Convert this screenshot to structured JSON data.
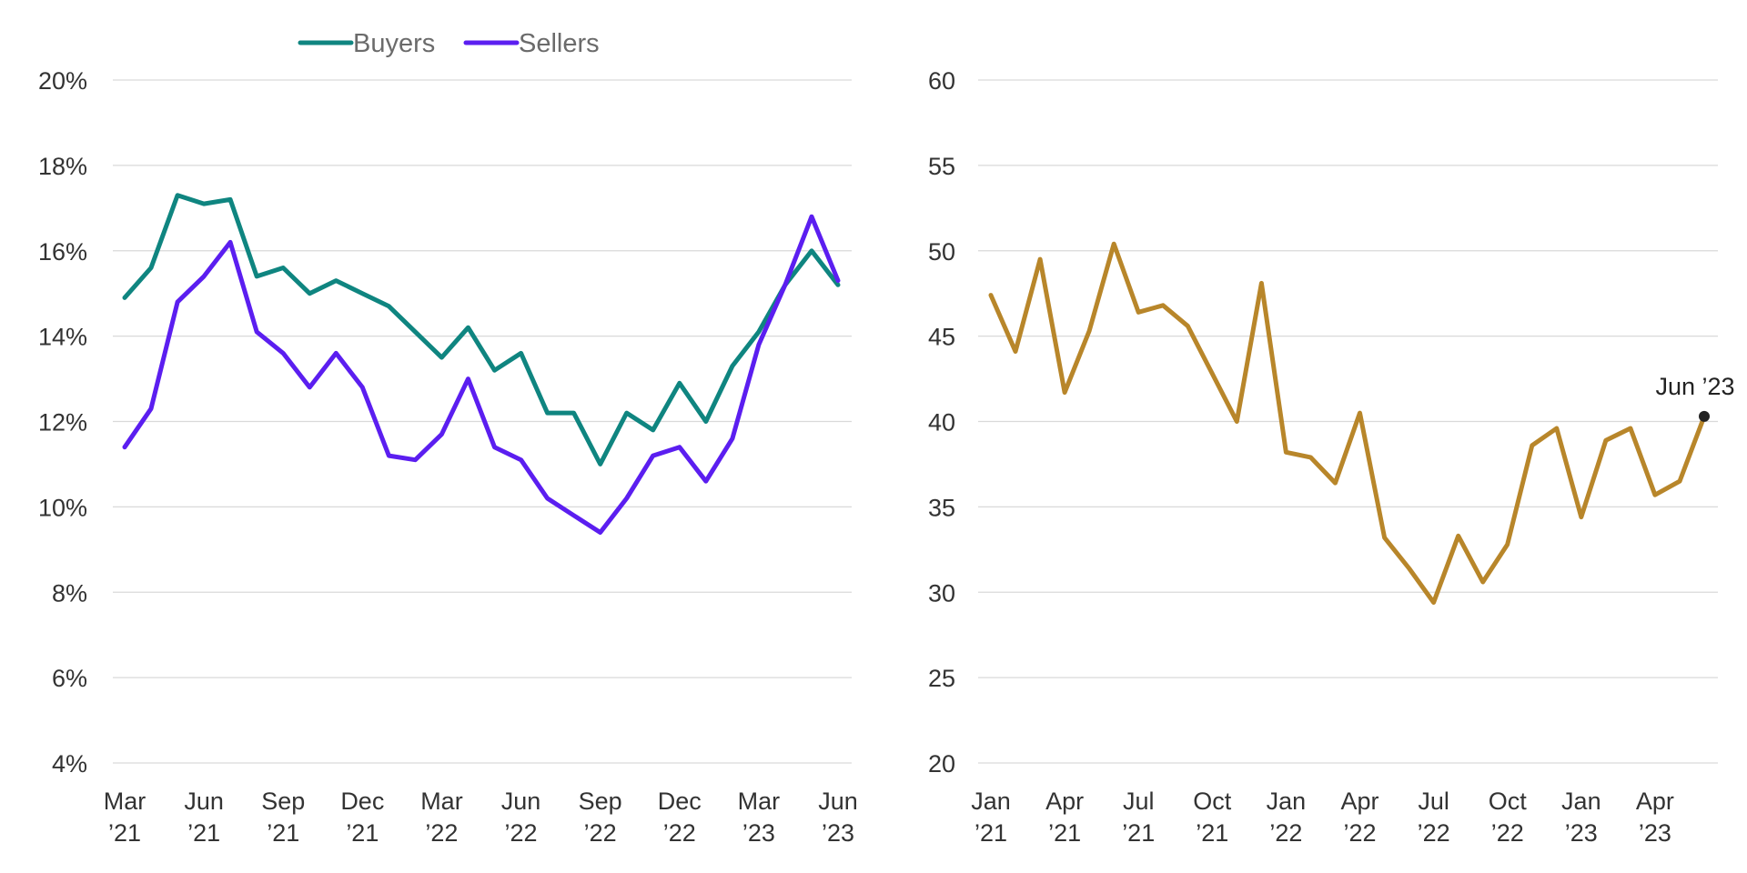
{
  "chart_data": [
    {
      "type": "line",
      "title": "",
      "xlabel": "",
      "ylabel": "",
      "ylim": [
        4,
        20
      ],
      "yticks": [
        "4%",
        "6%",
        "8%",
        "10%",
        "12%",
        "14%",
        "16%",
        "18%",
        "20%"
      ],
      "ytick_values": [
        4,
        6,
        8,
        10,
        12,
        14,
        16,
        18,
        20
      ],
      "x": [
        "Mar 2021",
        "Apr 2021",
        "May 2021",
        "Jun 2021",
        "Jul 2021",
        "Aug 2021",
        "Sep 2021",
        "Oct 2021",
        "Nov 2021",
        "Dec 2021",
        "Jan 2022",
        "Feb 2022",
        "Mar 2022",
        "Apr 2022",
        "May 2022",
        "Jun 2022",
        "Jul 2022",
        "Aug 2022",
        "Sep 2022",
        "Oct 2022",
        "Nov 2022",
        "Dec 2022",
        "Jan 2023",
        "Feb 2023",
        "Mar 2023",
        "Apr 2023",
        "May 2023",
        "Jun 2023"
      ],
      "xtick_labels": [
        {
          "line1": "Mar",
          "line2": "’21"
        },
        {
          "line1": "Jun",
          "line2": "’21"
        },
        {
          "line1": "Sep",
          "line2": "’21"
        },
        {
          "line1": "Dec",
          "line2": "’21"
        },
        {
          "line1": "Mar",
          "line2": "’22"
        },
        {
          "line1": "Jun",
          "line2": "’22"
        },
        {
          "line1": "Sep",
          "line2": "’22"
        },
        {
          "line1": "Dec",
          "line2": "’22"
        },
        {
          "line1": "Mar",
          "line2": "’23"
        },
        {
          "line1": "Jun",
          "line2": "’23"
        }
      ],
      "legend": {
        "placement": "top-center"
      },
      "grid": true,
      "series": [
        {
          "name": "Buyers",
          "color": "#0f8580",
          "values": [
            14.9,
            15.6,
            17.3,
            17.1,
            17.2,
            15.4,
            15.6,
            15.0,
            15.3,
            15.0,
            14.7,
            14.1,
            13.5,
            14.2,
            13.2,
            13.6,
            12.2,
            12.2,
            11.0,
            12.2,
            11.8,
            12.9,
            12.0,
            13.3,
            14.1,
            15.2,
            16.0,
            15.2
          ]
        },
        {
          "name": "Sellers",
          "color": "#5b1ef0",
          "values": [
            11.4,
            12.3,
            14.8,
            15.4,
            16.2,
            14.1,
            13.6,
            12.8,
            13.6,
            12.8,
            11.2,
            11.1,
            11.7,
            13.0,
            11.4,
            11.1,
            10.2,
            9.8,
            9.4,
            10.2,
            11.2,
            11.4,
            10.6,
            11.6,
            13.8,
            15.2,
            16.8,
            15.3
          ]
        }
      ]
    },
    {
      "type": "line",
      "title": "",
      "xlabel": "",
      "ylabel": "",
      "ylim": [
        20,
        60
      ],
      "yticks": [
        "20",
        "25",
        "30",
        "35",
        "40",
        "45",
        "50",
        "55",
        "60"
      ],
      "ytick_values": [
        20,
        25,
        30,
        35,
        40,
        45,
        50,
        55,
        60
      ],
      "x": [
        "Jan 2021",
        "Feb 2021",
        "Mar 2021",
        "Apr 2021",
        "May 2021",
        "Jun 2021",
        "Jul 2021",
        "Aug 2021",
        "Sep 2021",
        "Oct 2021",
        "Nov 2021",
        "Dec 2021",
        "Jan 2022",
        "Feb 2022",
        "Mar 2022",
        "Apr 2022",
        "May 2022",
        "Jun 2022",
        "Jul 2022",
        "Aug 2022",
        "Sep 2022",
        "Oct 2022",
        "Nov 2022",
        "Dec 2022",
        "Jan 2023",
        "Feb 2023",
        "Mar 2023",
        "Apr 2023",
        "May 2023",
        "Jun 2023"
      ],
      "xtick_labels": [
        {
          "line1": "Jan",
          "line2": "’21"
        },
        {
          "line1": "Apr",
          "line2": "’21"
        },
        {
          "line1": "Jul",
          "line2": "’21"
        },
        {
          "line1": "Oct",
          "line2": "’21"
        },
        {
          "line1": "Jan",
          "line2": "’22"
        },
        {
          "line1": "Apr",
          "line2": "’22"
        },
        {
          "line1": "Jul",
          "line2": "’22"
        },
        {
          "line1": "Oct",
          "line2": "’22"
        },
        {
          "line1": "Jan",
          "line2": "’23"
        },
        {
          "line1": "Apr",
          "line2": "’23"
        }
      ],
      "grid": true,
      "series": [
        {
          "color": "#b8862a",
          "values": [
            47.4,
            44.1,
            49.5,
            41.7,
            45.3,
            50.4,
            46.4,
            46.8,
            45.6,
            42.8,
            40.0,
            48.1,
            38.2,
            37.9,
            36.4,
            40.5,
            33.2,
            31.4,
            29.4,
            33.3,
            30.6,
            32.8,
            38.6,
            39.6,
            34.4,
            38.9,
            39.6,
            35.7,
            36.5,
            40.3
          ]
        }
      ],
      "annotations": [
        {
          "text": "Jun ’23",
          "x": "Jun 2023",
          "y": 40.3,
          "marker_color": "#222222"
        }
      ]
    }
  ]
}
